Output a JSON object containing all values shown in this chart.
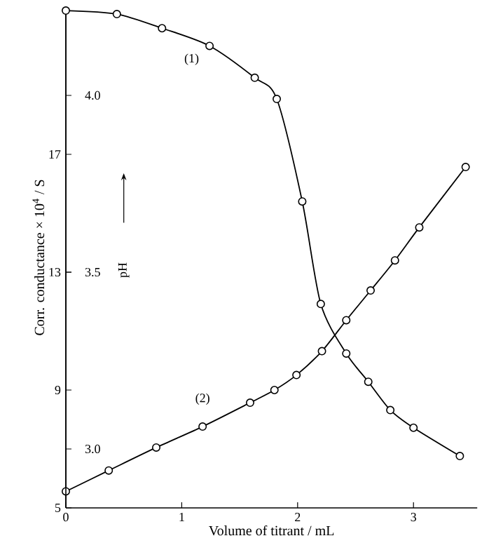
{
  "chart_data": {
    "type": "line",
    "xlabel": "Volume of titrant / mL",
    "ylabel": "Corr. conductance × 10$^{4}$ / S",
    "y2label": "pH",
    "xlim": [
      0,
      3.55
    ],
    "xticks": [
      0,
      1,
      2,
      3
    ],
    "ylim": [
      5,
      22
    ],
    "yticks": [
      5,
      9,
      13,
      17
    ],
    "y2lim": [
      2.8333,
      4.25
    ],
    "y2ticks": [
      {
        "value": 3.0,
        "label": "3.0"
      },
      {
        "value": 3.5,
        "label": "3.5"
      },
      {
        "value": 4.0,
        "label": "4.0"
      }
    ],
    "marker": "circle",
    "line_style": "solid",
    "grid": false,
    "series": [
      {
        "name": "(1)",
        "axis": "y2",
        "color": "#000000",
        "x": [
          0,
          0.44,
          0.83,
          1.24,
          1.63,
          1.82,
          2.04,
          2.2,
          2.42,
          2.61,
          2.8,
          3.0,
          3.4
        ],
        "values": [
          4.24,
          4.23,
          4.19,
          4.14,
          4.05,
          3.99,
          3.7,
          3.41,
          3.27,
          3.19,
          3.11,
          3.06,
          2.98
        ]
      },
      {
        "name": "(2)",
        "axis": "y",
        "color": "#000000",
        "x": [
          0,
          0.37,
          0.78,
          1.18,
          1.59,
          1.8,
          1.99,
          2.21,
          2.42,
          2.63,
          2.84,
          3.05,
          3.45
        ],
        "values": [
          5.56,
          6.27,
          7.05,
          7.76,
          8.57,
          9.0,
          9.51,
          10.32,
          11.37,
          12.38,
          13.4,
          14.52,
          16.57
        ]
      }
    ]
  }
}
